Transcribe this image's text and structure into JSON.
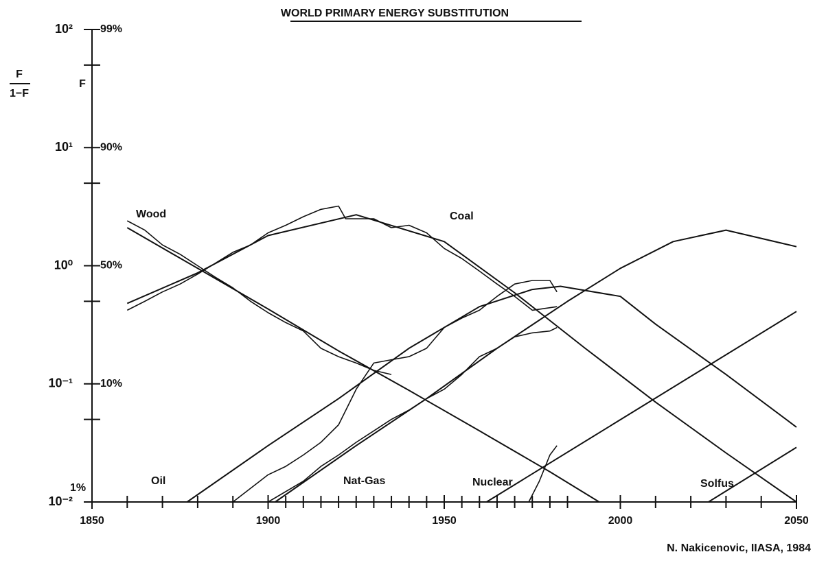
{
  "chart_data": {
    "type": "line",
    "title": "WORLD PRIMARY ENERGY SUBSTITUTION",
    "credit": "N. Nakicenovic, IIASA, 1984",
    "y_axis_label": {
      "numerator": "F",
      "denominator": "1−F"
    },
    "y2_axis_label": "F",
    "log_y": true,
    "color": "#111111",
    "xlim": [
      1850,
      2050
    ],
    "xticks": [
      1850,
      1900,
      1950,
      2000,
      2050
    ],
    "xminor": [
      1860,
      1870,
      1880,
      1890,
      1905,
      1910,
      1915,
      1920,
      1925,
      1930,
      1935,
      1940,
      1945,
      1955,
      1960,
      1965,
      1970,
      1975,
      1980,
      1985,
      2010,
      2020,
      2030,
      2040
    ],
    "ylim": [
      0.01,
      100
    ],
    "yticks": [
      {
        "value": 100,
        "label": "10²"
      },
      {
        "value": 10,
        "label": "10¹"
      },
      {
        "value": 1,
        "label": "10⁰"
      },
      {
        "value": 0.1,
        "label": "10⁻¹"
      },
      {
        "value": 0.01,
        "label": "10⁻²"
      }
    ],
    "y_percent_labels": [
      "99%",
      "90%",
      "50%",
      "10%",
      "1%"
    ],
    "yminor": [
      50,
      5,
      0.5,
      0.05
    ],
    "series": [
      {
        "name": "Wood",
        "x": [
          1860,
          1880,
          1900,
          1920,
          1940,
          1960,
          1980,
          1994
        ],
        "values": [
          2.1,
          0.95,
          0.43,
          0.19,
          0.088,
          0.04,
          0.018,
          0.01
        ],
        "observed_x": [
          1860,
          1865,
          1870,
          1875,
          1880,
          1885,
          1890,
          1895,
          1900,
          1905,
          1910,
          1915,
          1920,
          1925,
          1930,
          1935
        ],
        "observed_values": [
          2.4,
          2.0,
          1.5,
          1.25,
          1.0,
          0.8,
          0.65,
          0.5,
          0.4,
          0.33,
          0.28,
          0.2,
          0.17,
          0.15,
          0.13,
          0.12
        ]
      },
      {
        "name": "Coal",
        "x": [
          1860,
          1880,
          1900,
          1925,
          1950,
          1970,
          1990,
          2010,
          2030,
          2050
        ],
        "values": [
          0.48,
          0.87,
          1.8,
          2.7,
          1.6,
          0.59,
          0.2,
          0.07,
          0.026,
          0.01
        ],
        "observed_x": [
          1860,
          1865,
          1870,
          1875,
          1880,
          1885,
          1890,
          1895,
          1900,
          1905,
          1910,
          1915,
          1920,
          1922,
          1930,
          1935,
          1940,
          1945,
          1950,
          1955,
          1960,
          1965,
          1970,
          1975,
          1982
        ],
        "observed_values": [
          0.42,
          0.5,
          0.6,
          0.7,
          0.85,
          1.05,
          1.3,
          1.5,
          1.9,
          2.2,
          2.6,
          3.0,
          3.2,
          2.5,
          2.5,
          2.1,
          2.2,
          1.9,
          1.4,
          1.15,
          0.9,
          0.7,
          0.55,
          0.42,
          0.45
        ]
      },
      {
        "name": "Oil",
        "x": [
          1877,
          1900,
          1920,
          1940,
          1960,
          1975,
          1983,
          2000,
          2010,
          2030,
          2050
        ],
        "values": [
          0.01,
          0.03,
          0.075,
          0.2,
          0.45,
          0.63,
          0.67,
          0.55,
          0.32,
          0.12,
          0.043
        ],
        "observed_x": [
          1890,
          1900,
          1905,
          1910,
          1915,
          1920,
          1925,
          1930,
          1935,
          1940,
          1945,
          1950,
          1955,
          1960,
          1965,
          1970,
          1975,
          1980,
          1982
        ],
        "observed_values": [
          0.01,
          0.017,
          0.02,
          0.025,
          0.032,
          0.045,
          0.09,
          0.15,
          0.16,
          0.17,
          0.2,
          0.3,
          0.36,
          0.42,
          0.55,
          0.7,
          0.75,
          0.75,
          0.6
        ]
      },
      {
        "name": "Nat-Gas",
        "x": [
          1902,
          1925,
          1945,
          1965,
          1985,
          2000,
          2015,
          2030,
          2050
        ],
        "values": [
          0.01,
          0.03,
          0.075,
          0.2,
          0.5,
          0.95,
          1.6,
          2.0,
          1.45
        ],
        "observed_x": [
          1900,
          1910,
          1915,
          1920,
          1925,
          1930,
          1935,
          1940,
          1945,
          1950,
          1955,
          1960,
          1965,
          1970,
          1975,
          1980,
          1982
        ],
        "observed_values": [
          0.01,
          0.015,
          0.02,
          0.025,
          0.032,
          0.04,
          0.05,
          0.06,
          0.075,
          0.09,
          0.12,
          0.17,
          0.2,
          0.25,
          0.27,
          0.28,
          0.3
        ]
      },
      {
        "name": "Nuclear",
        "x": [
          1962,
          2050
        ],
        "values": [
          0.01,
          0.41
        ],
        "observed_x": [
          1974,
          1977,
          1980,
          1982
        ],
        "observed_values": [
          0.01,
          0.015,
          0.025,
          0.03
        ]
      },
      {
        "name": "Solfus",
        "x": [
          2025,
          2050
        ],
        "values": [
          0.01,
          0.029
        ]
      }
    ]
  }
}
